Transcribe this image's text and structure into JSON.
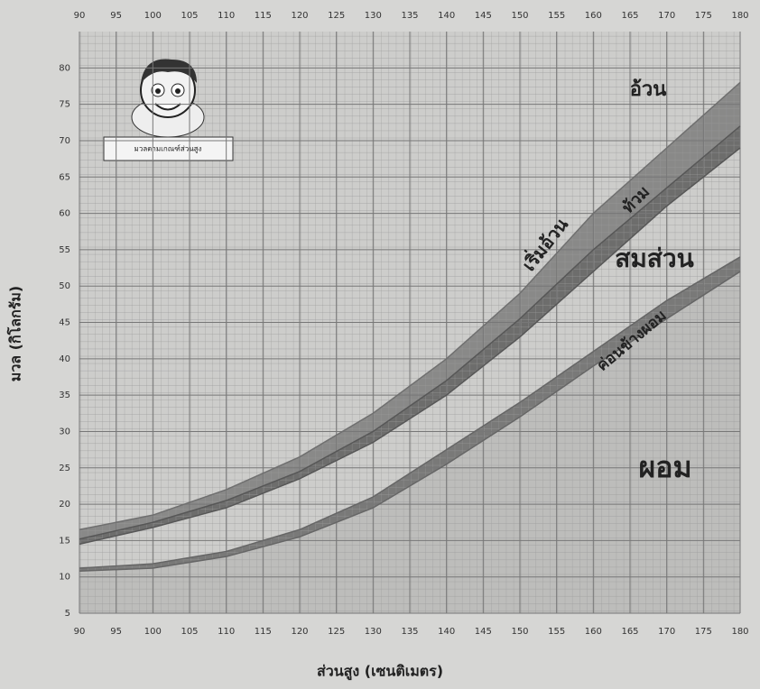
{
  "chart_data": {
    "type": "line",
    "x_label": "ส่วนสูง (เซนติเมตร)",
    "y_label": "มวล (กิโลกรัม)",
    "box_label": "มวลตามเกณฑ์ส่วนสูง",
    "annotations": [
      "อ้วน",
      "เริ่มอ้วน",
      "ท้วม",
      "สมส่วน",
      "ค่อนข้างผอม",
      "ผอม"
    ],
    "x": [
      90,
      100,
      110,
      120,
      130,
      140,
      150,
      160,
      170,
      180
    ],
    "series": [
      {
        "color": "#6f6f6f",
        "values": [
          16.5,
          18.5,
          22,
          26.5,
          32.5,
          40,
          49,
          60,
          69,
          78
        ]
      },
      {
        "color": "#575757",
        "values": [
          15.2,
          17.5,
          20.5,
          24.5,
          30,
          37,
          45.5,
          55,
          63.5,
          72
        ]
      },
      {
        "color": "#575757",
        "values": [
          14.5,
          16.8,
          19.5,
          23.5,
          28.5,
          35,
          43,
          52,
          61,
          69
        ]
      },
      {
        "color": "#666666",
        "values": [
          11.2,
          11.8,
          13.5,
          16.5,
          21,
          27.5,
          34,
          41,
          48,
          54
        ]
      },
      {
        "color": "#666666",
        "values": [
          10.8,
          11.2,
          12.8,
          15.5,
          19.5,
          25.5,
          32,
          39,
          45.5,
          52
        ]
      }
    ],
    "xlim": [
      90,
      180
    ],
    "ylim": [
      5,
      85
    ],
    "xticks": [
      90,
      95,
      100,
      105,
      110,
      115,
      120,
      125,
      130,
      135,
      140,
      145,
      150,
      155,
      160,
      165,
      170,
      175,
      180
    ],
    "yticks": [
      5,
      10,
      15,
      20,
      25,
      30,
      35,
      40,
      45,
      50,
      55,
      60,
      65,
      70,
      75,
      80
    ],
    "grid": true
  }
}
